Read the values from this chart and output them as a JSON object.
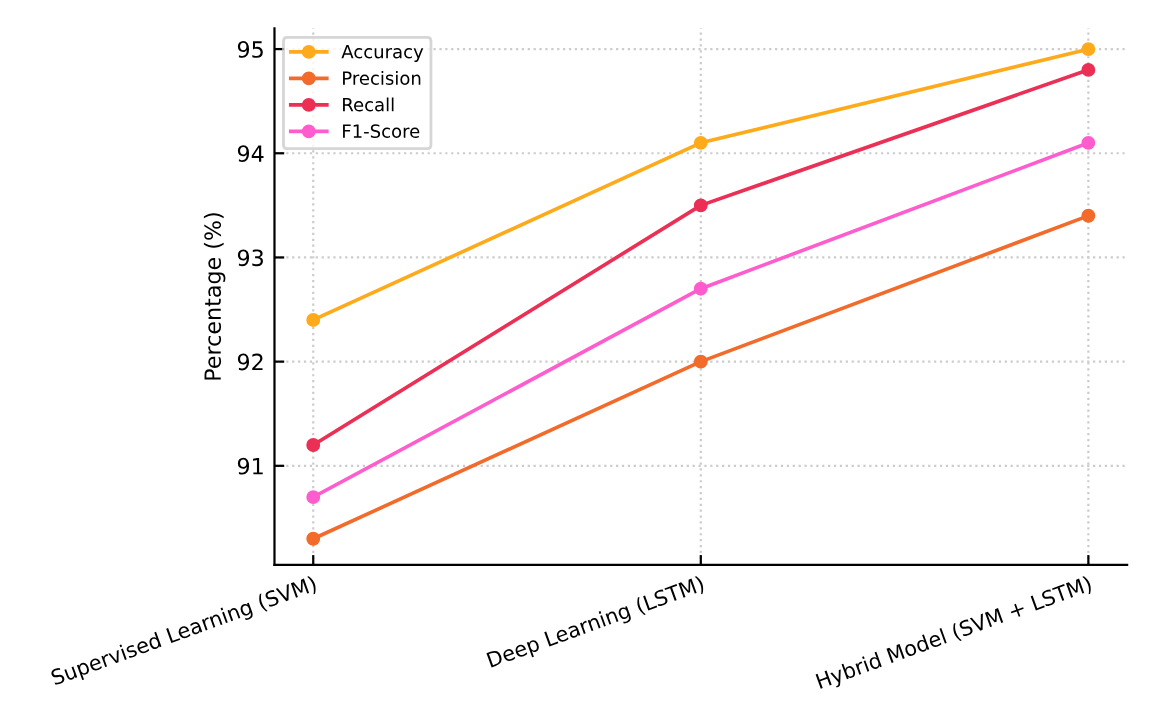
{
  "chart_data": {
    "type": "line",
    "ylabel": "Percentage (%)",
    "categories": [
      "Supervised Learning (SVM)",
      "Deep Learning (LSTM)",
      "Hybrid Model (SVM + LSTM)"
    ],
    "series": [
      {
        "name": "Accuracy",
        "color": "#ffaa1a",
        "values": [
          92.4,
          94.1,
          95.0
        ]
      },
      {
        "name": "Precision",
        "color": "#f26b2a",
        "values": [
          90.3,
          92.0,
          93.4
        ]
      },
      {
        "name": "Recall",
        "color": "#eb2f55",
        "values": [
          91.2,
          93.5,
          94.8
        ]
      },
      {
        "name": "F1-Score",
        "color": "#ff5ccd",
        "values": [
          90.7,
          92.7,
          94.1
        ]
      }
    ],
    "ylim": [
      90.05,
      95.2
    ],
    "yticks": [
      91,
      92,
      93,
      94,
      95
    ],
    "grid": true,
    "legend": "top left",
    "marker": "circle",
    "line_style": "solid"
  }
}
